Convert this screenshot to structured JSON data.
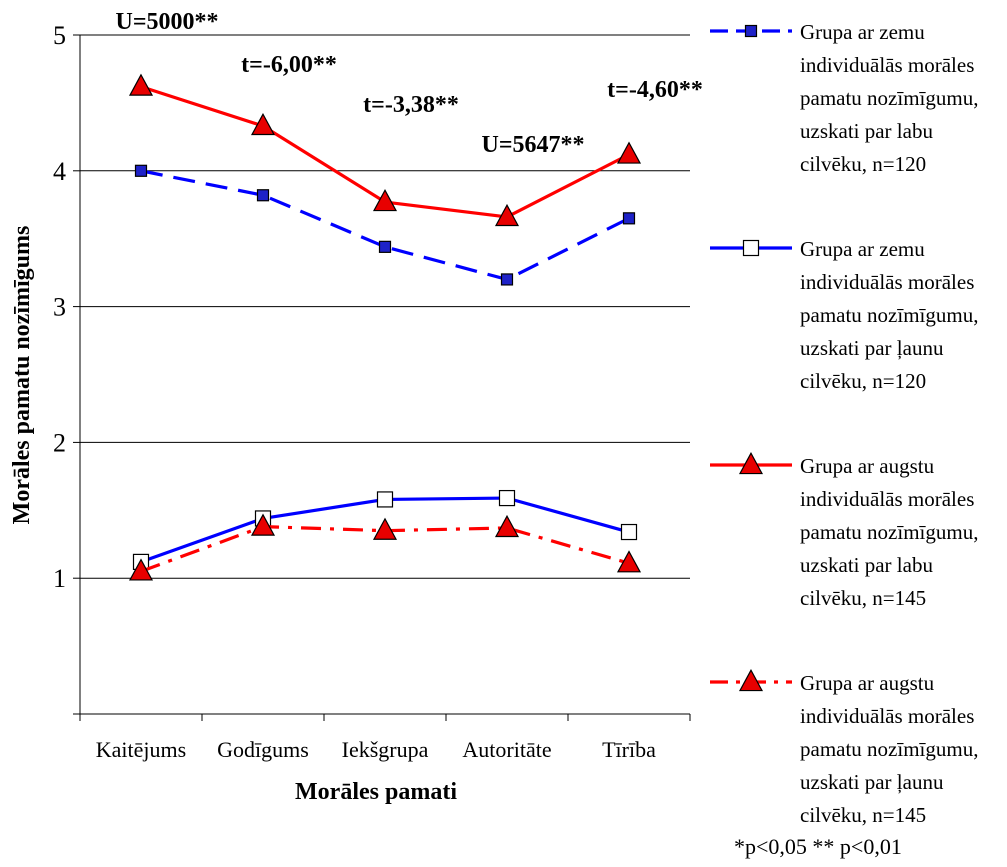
{
  "chart_data": {
    "type": "line",
    "categories": [
      "Kaitējums",
      "Godīgums",
      "Iekšgrupa",
      "Autoritāte",
      "Tīrība"
    ],
    "xlabel": "Morāles pamati",
    "ylabel": "Morāles pamatu nozīmīgums",
    "ylim": [
      0,
      5
    ],
    "yticks": [
      "1",
      "2",
      "3",
      "4",
      "5"
    ],
    "grid": "horizontal",
    "legend_position": "right",
    "series": [
      {
        "name": [
          "Grupa ar zemu",
          "individuālās morāles",
          "pamatu nozīmīgumu,",
          "uzskati par labu",
          "cilvēku, n=120"
        ],
        "values": [
          4.0,
          3.82,
          3.44,
          3.2,
          3.65
        ],
        "color": "#0000ff",
        "dash": "dashed",
        "marker": "square",
        "marker_fill": "#1e22c8"
      },
      {
        "name": [
          "Grupa ar zemu",
          "individuālās morāles",
          "pamatu nozīmīgumu,",
          "uzskati par ļaunu",
          "cilvēku, n=120"
        ],
        "values": [
          1.12,
          1.44,
          1.58,
          1.59,
          1.34
        ],
        "color": "#0000ff",
        "dash": "solid",
        "marker": "square",
        "marker_fill": "#ffffff"
      },
      {
        "name": [
          "Grupa ar augstu",
          "individuālās morāles",
          "pamatu nozīmīgumu,",
          "uzskati par labu",
          "cilvēku, n=145"
        ],
        "values": [
          4.62,
          4.33,
          3.77,
          3.66,
          4.12
        ],
        "color": "#ff0000",
        "dash": "solid",
        "marker": "triangle",
        "marker_fill": "#e80000"
      },
      {
        "name": [
          "Grupa ar augstu",
          "individuālās morāles",
          "pamatu nozīmīgumu,",
          "uzskati par ļaunu",
          "cilvēku, n=145"
        ],
        "values": [
          1.05,
          1.38,
          1.35,
          1.37,
          1.11
        ],
        "color": "#ff0000",
        "dash": "dashdot",
        "marker": "triangle",
        "marker_fill": "#e80000"
      }
    ],
    "annotations": [
      {
        "text": "U=5000**",
        "category": "Kaitējums"
      },
      {
        "text": "t=-6,00**",
        "category": "Godīgums"
      },
      {
        "text": "t=-3,38**",
        "category": "Iekšgrupa"
      },
      {
        "text": "U=5647**",
        "category": "Autoritāte"
      },
      {
        "text": "t=-4,60**",
        "category": "Tīrība"
      }
    ],
    "footnote": "*p<0,05  ** p<0,01"
  }
}
